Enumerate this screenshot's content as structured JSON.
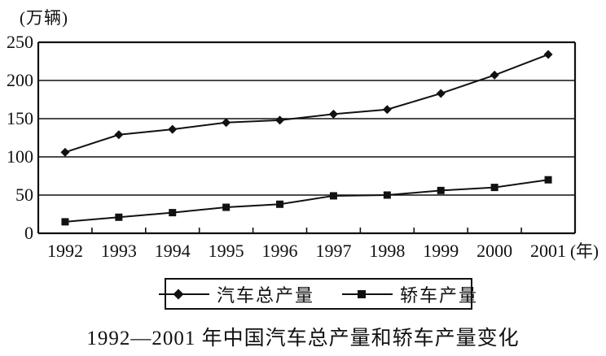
{
  "chart_data": {
    "type": "line",
    "title": "1992—2001 年中国汽车总产量和轿车产量变化",
    "unit_label": "(万辆)",
    "x_unit_suffix": "(年)",
    "categories": [
      "1992",
      "1993",
      "1994",
      "1995",
      "1996",
      "1997",
      "1998",
      "1999",
      "2000",
      "2001"
    ],
    "series": [
      {
        "name": "汽车总产量",
        "marker": "diamond",
        "values": [
          106,
          129,
          136,
          145,
          148,
          156,
          162,
          183,
          207,
          234
        ]
      },
      {
        "name": "轿车产量",
        "marker": "square",
        "values": [
          15,
          21,
          27,
          34,
          38,
          49,
          50,
          56,
          60,
          70
        ]
      }
    ],
    "ylim": [
      0,
      250
    ],
    "yticks": [
      0,
      50,
      100,
      150,
      200,
      250
    ],
    "grid": "horizontal",
    "legend_position": "bottom",
    "line_color": "#111111",
    "background": "#ffffff"
  }
}
